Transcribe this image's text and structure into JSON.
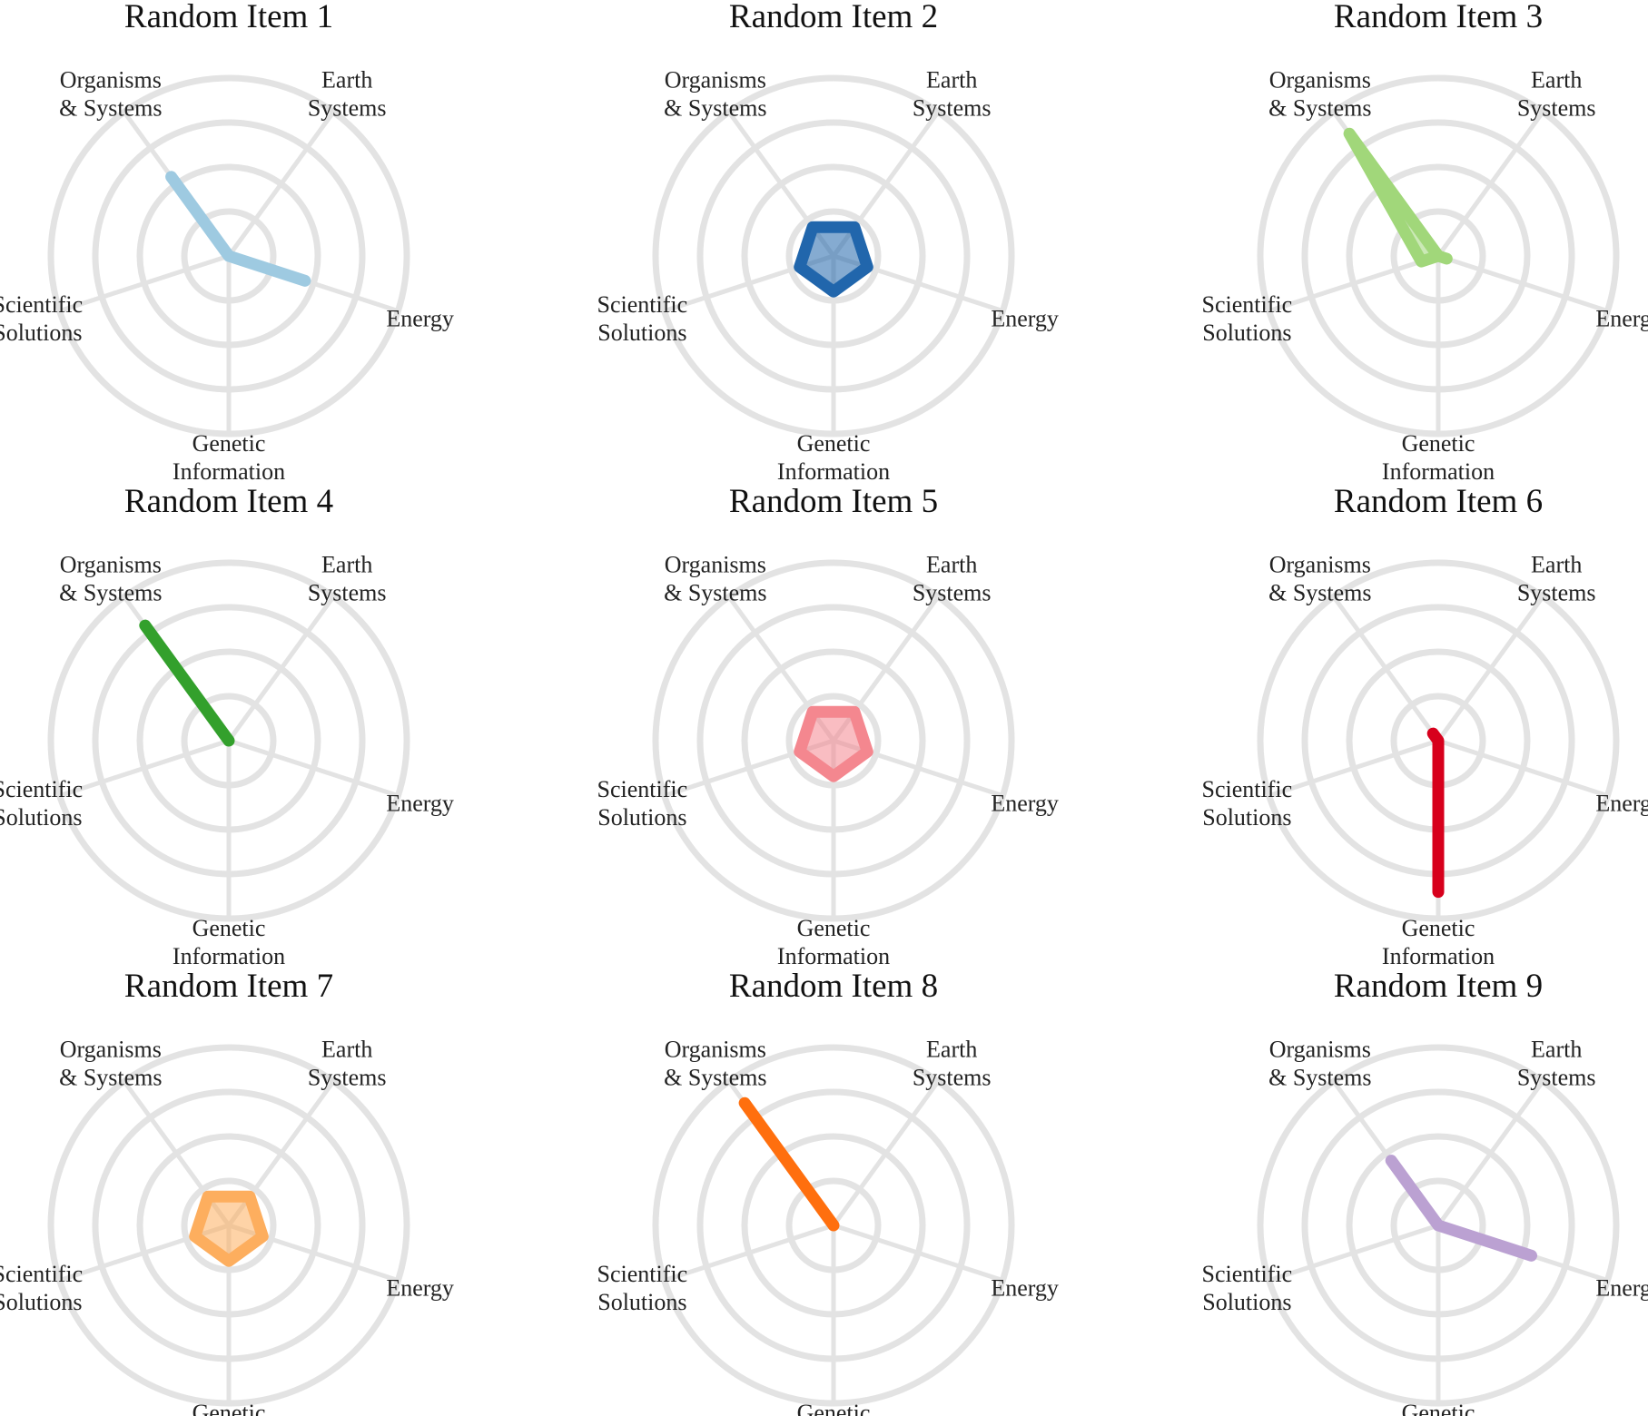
{
  "chart_data": [
    {
      "type": "radar",
      "title": "Random Item 1",
      "color": "#9ecae1",
      "axes": [
        "Organisms & Systems",
        "Earth Systems",
        "Energy",
        "Genetic Information",
        "Scientific Solutions"
      ],
      "values": [
        0.55,
        0,
        0.45,
        0,
        0
      ],
      "rlim": [
        0,
        1
      ]
    },
    {
      "type": "radar",
      "title": "Random Item 2",
      "color": "#2166ac",
      "axes": [
        "Organisms & Systems",
        "Earth Systems",
        "Energy",
        "Genetic Information",
        "Scientific Solutions"
      ],
      "values": [
        0.2,
        0.2,
        0.2,
        0.2,
        0.2
      ],
      "rlim": [
        0,
        1
      ]
    },
    {
      "type": "radar",
      "title": "Random Item 3",
      "color": "#a1d77a",
      "axes": [
        "Organisms & Systems",
        "Earth Systems",
        "Energy",
        "Genetic Information",
        "Scientific Solutions"
      ],
      "values": [
        0.85,
        0,
        0.05,
        0,
        0.1
      ],
      "rlim": [
        0,
        1
      ]
    },
    {
      "type": "radar",
      "title": "Random Item 4",
      "color": "#33a02c",
      "axes": [
        "Organisms & Systems",
        "Earth Systems",
        "Energy",
        "Genetic Information",
        "Scientific Solutions"
      ],
      "values": [
        0.8,
        0,
        0,
        0,
        0
      ],
      "rlim": [
        0,
        1
      ]
    },
    {
      "type": "radar",
      "title": "Random Item 5",
      "color": "#f4878f",
      "axes": [
        "Organisms & Systems",
        "Earth Systems",
        "Energy",
        "Genetic Information",
        "Scientific Solutions"
      ],
      "values": [
        0.2,
        0.2,
        0.2,
        0.2,
        0.2
      ],
      "rlim": [
        0,
        1
      ]
    },
    {
      "type": "radar",
      "title": "Random Item 6",
      "color": "#d7001c",
      "axes": [
        "Organisms & Systems",
        "Earth Systems",
        "Energy",
        "Genetic Information",
        "Scientific Solutions"
      ],
      "values": [
        0.05,
        0,
        0,
        0.85,
        0
      ],
      "rlim": [
        0,
        1
      ]
    },
    {
      "type": "radar",
      "title": "Random Item 7",
      "color": "#fdae5e",
      "axes": [
        "Organisms & Systems",
        "Earth Systems",
        "Energy",
        "Genetic Information",
        "Scientific Solutions"
      ],
      "values": [
        0.2,
        0.2,
        0.2,
        0.2,
        0.2
      ],
      "rlim": [
        0,
        1
      ]
    },
    {
      "type": "radar",
      "title": "Random Item 8",
      "color": "#ff6f0e",
      "axes": [
        "Organisms & Systems",
        "Earth Systems",
        "Energy",
        "Genetic Information",
        "Scientific Solutions"
      ],
      "values": [
        0.85,
        0,
        0,
        0,
        0
      ],
      "rlim": [
        0,
        1
      ]
    },
    {
      "type": "radar",
      "title": "Random Item 9",
      "color": "#bba1d2",
      "axes": [
        "Organisms & Systems",
        "Earth Systems",
        "Energy",
        "Genetic Information",
        "Scientific Solutions"
      ],
      "values": [
        0.45,
        0,
        0.55,
        0,
        0
      ],
      "rlim": [
        0,
        1
      ]
    }
  ]
}
